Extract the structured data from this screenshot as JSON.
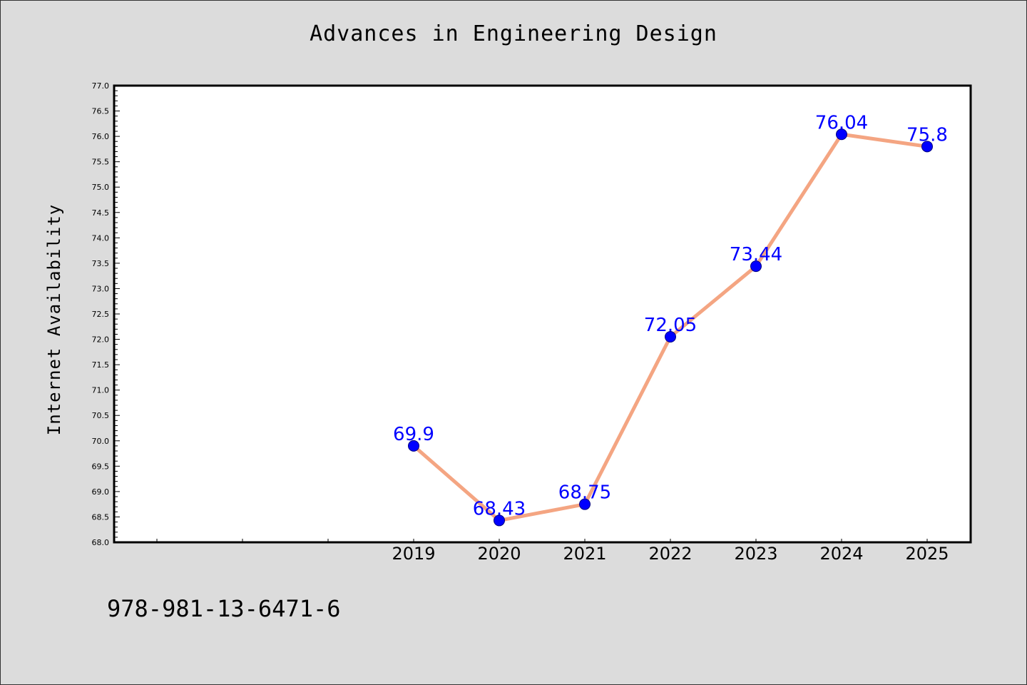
{
  "page": {
    "isbn": "978-981-13-6471-6"
  },
  "chart_data": {
    "type": "line",
    "title": "Advances in Engineering Design",
    "xlabel": "",
    "ylabel": "Internet Availability",
    "categories": [
      "2019",
      "2020",
      "2021",
      "2022",
      "2023",
      "2024",
      "2025"
    ],
    "x_axis_slots": 10,
    "first_category_slot": 3,
    "ylim": [
      68.0,
      77.0
    ],
    "y_major_step": 0.5,
    "y_minor_step": 0.1,
    "grid": false,
    "legend": "none",
    "series": [
      {
        "values": [
          69.9,
          68.43,
          68.75,
          72.05,
          73.44,
          76.04,
          75.8
        ],
        "labels": [
          "69.9",
          "68.43",
          "68.75",
          "72.05",
          "73.44",
          "76.04",
          "75.8"
        ],
        "line_color": "#f4a582",
        "marker_color": "#0000ff",
        "label_color": "#0000ff"
      }
    ],
    "plot_background": "#ffffff",
    "figure_background": "#dcdcdc"
  }
}
